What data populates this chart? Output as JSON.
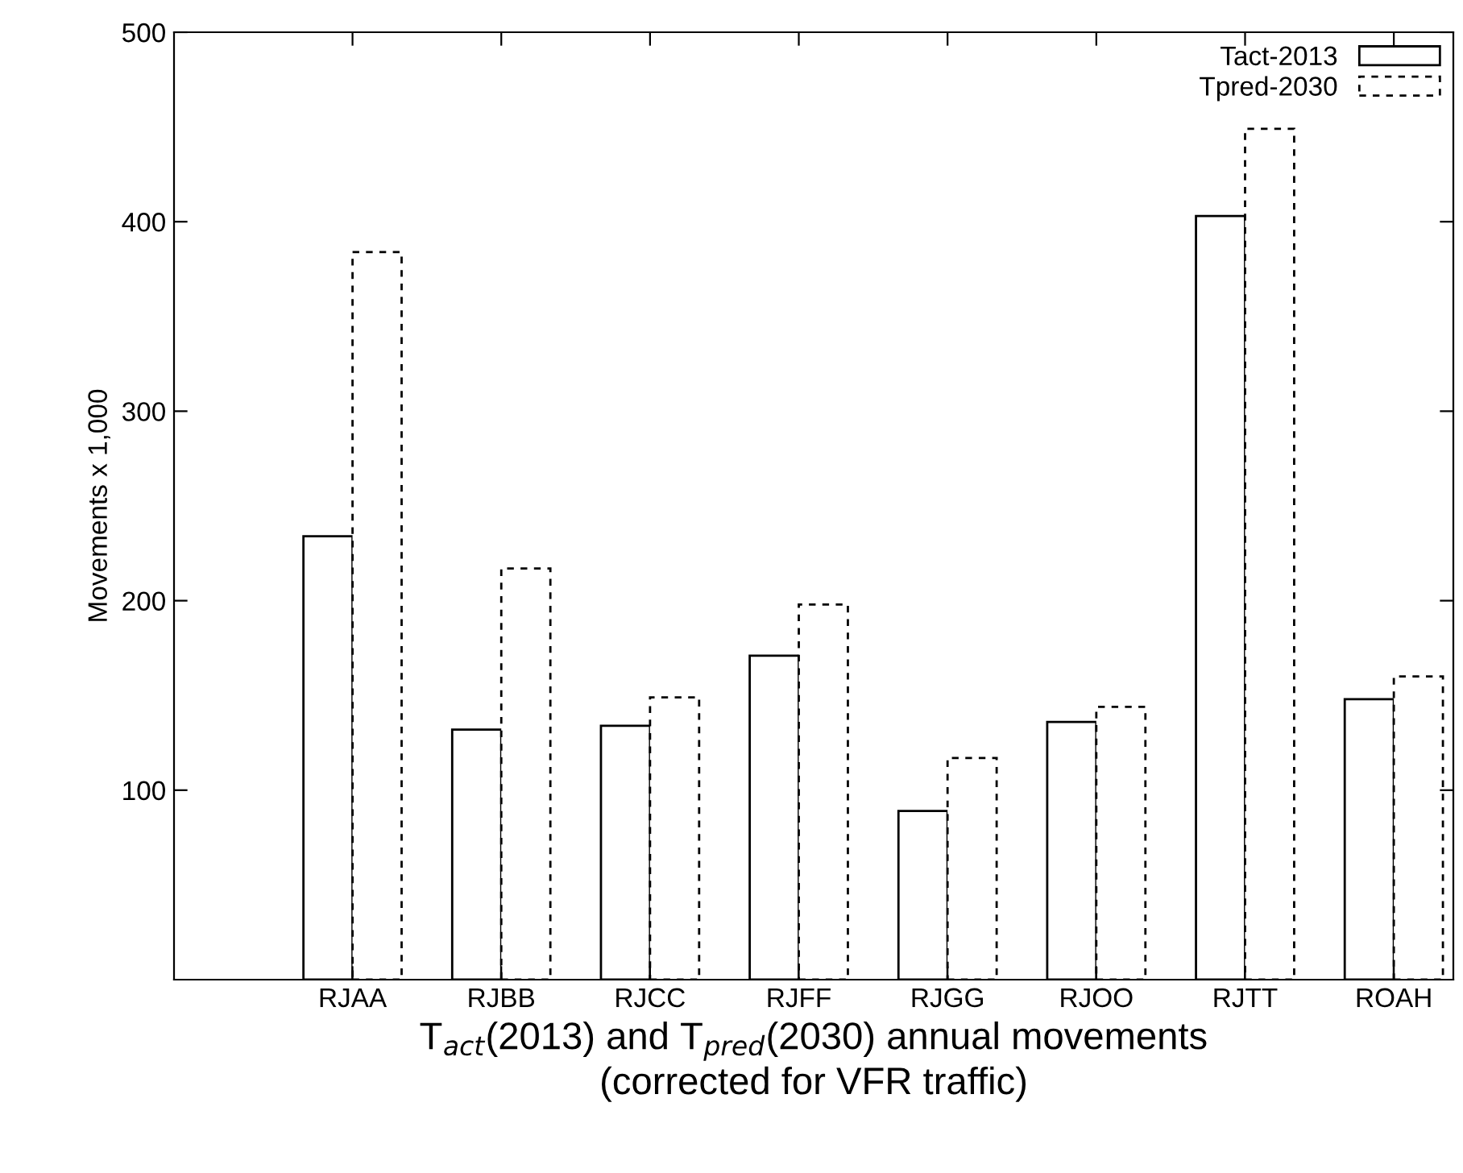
{
  "chart_data": {
    "type": "bar",
    "xlabel": "T$_{act}$(2013) and T$_{pred}$(2030) annual movements\n(corrected for VFR traffic)",
    "ylabel": "Movements x 1,000",
    "categories": [
      "RJAA",
      "RJBB",
      "RJCC",
      "RJFF",
      "RJGG",
      "RJOO",
      "RJTT",
      "ROAH"
    ],
    "series": [
      {
        "name": "Tact-2013",
        "color": "#000000",
        "line_style": "solid",
        "values": [
          234,
          132,
          134,
          171,
          89,
          136,
          403,
          148
        ]
      },
      {
        "name": "Tpred-2030",
        "color": "#000000",
        "line_style": "dashed",
        "values": [
          384,
          217,
          149,
          198,
          117,
          144,
          449,
          160
        ]
      }
    ],
    "ylim": [
      0,
      500
    ],
    "yticks": [
      100,
      200,
      300,
      400,
      500
    ],
    "grid": false,
    "legend": "top right"
  }
}
